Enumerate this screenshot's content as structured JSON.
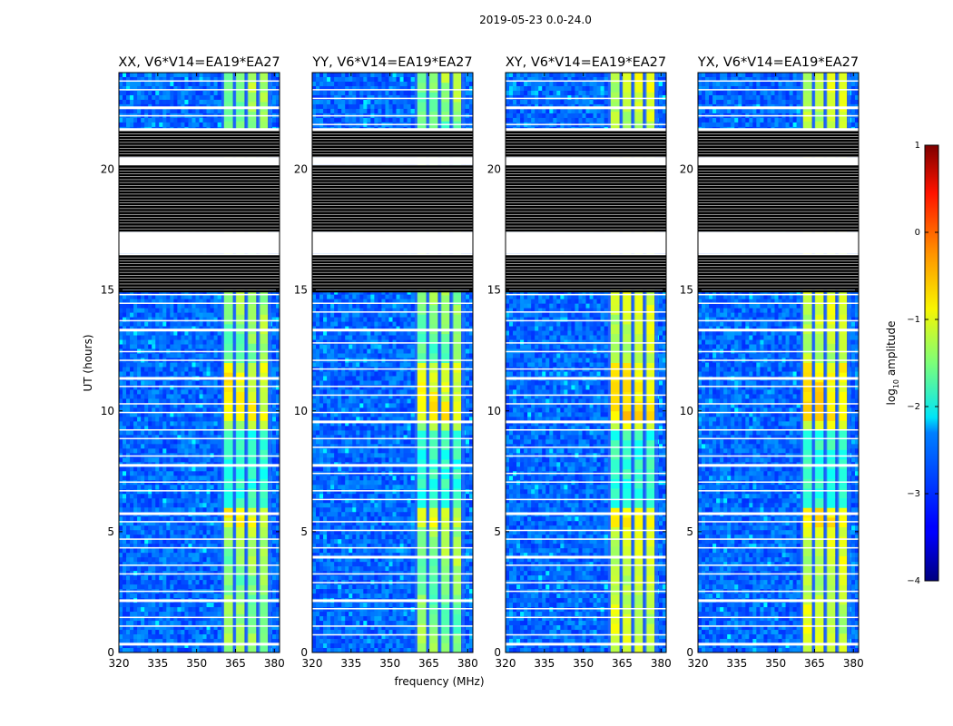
{
  "chart_data": {
    "type": "heatmap",
    "title": "2019-05-23 0.0-24.0",
    "xlabel": "frequency (MHz)",
    "ylabel": "UT (hours)",
    "xlim": [
      320,
      382
    ],
    "ylim": [
      0,
      24
    ],
    "x_ticks": [
      "320",
      "335",
      "350",
      "365",
      "380"
    ],
    "y_ticks": [
      "0",
      "5",
      "10",
      "15",
      "20"
    ],
    "x_tick_values": [
      320,
      335,
      350,
      365,
      380
    ],
    "y_tick_values": [
      0,
      5,
      10,
      15,
      20
    ],
    "panels": [
      {
        "name": "XX",
        "title": "XX, V6*V14=EA19*EA27",
        "strength": 1.0
      },
      {
        "name": "YY",
        "title": "YY, V6*V14=EA19*EA27",
        "strength": 1.05
      },
      {
        "name": "XY",
        "title": "XY, V6*V14=EA19*EA27",
        "strength": 0.8
      },
      {
        "name": "YX",
        "title": "YX, V6*V14=EA19*EA27",
        "strength": 0.8
      }
    ],
    "rfi_band_mhz": [
      360,
      378
    ],
    "rfi_channels_mhz": [
      {
        "from": 360.5,
        "to": 364.0
      },
      {
        "from": 365.0,
        "to": 368.5
      },
      {
        "from": 369.5,
        "to": 373.0
      },
      {
        "from": 374.0,
        "to": 377.5
      }
    ],
    "blanked_hours": [
      [
        20.2,
        20.5
      ],
      [
        16.5,
        17.4
      ]
    ],
    "black_stripes_hours": [
      [
        20.5,
        21.7
      ],
      [
        15.0,
        16.5
      ],
      [
        17.4,
        20.2
      ]
    ],
    "colorbar": {
      "label_main": "log",
      "label_sub": "10",
      "label_rest": " amplitude",
      "range": [
        -4,
        1
      ],
      "ticks": [
        "1",
        "0",
        "−1",
        "−2",
        "−3",
        "−4"
      ],
      "tick_values": [
        1,
        0,
        -1,
        -2,
        -3,
        -4
      ]
    }
  }
}
